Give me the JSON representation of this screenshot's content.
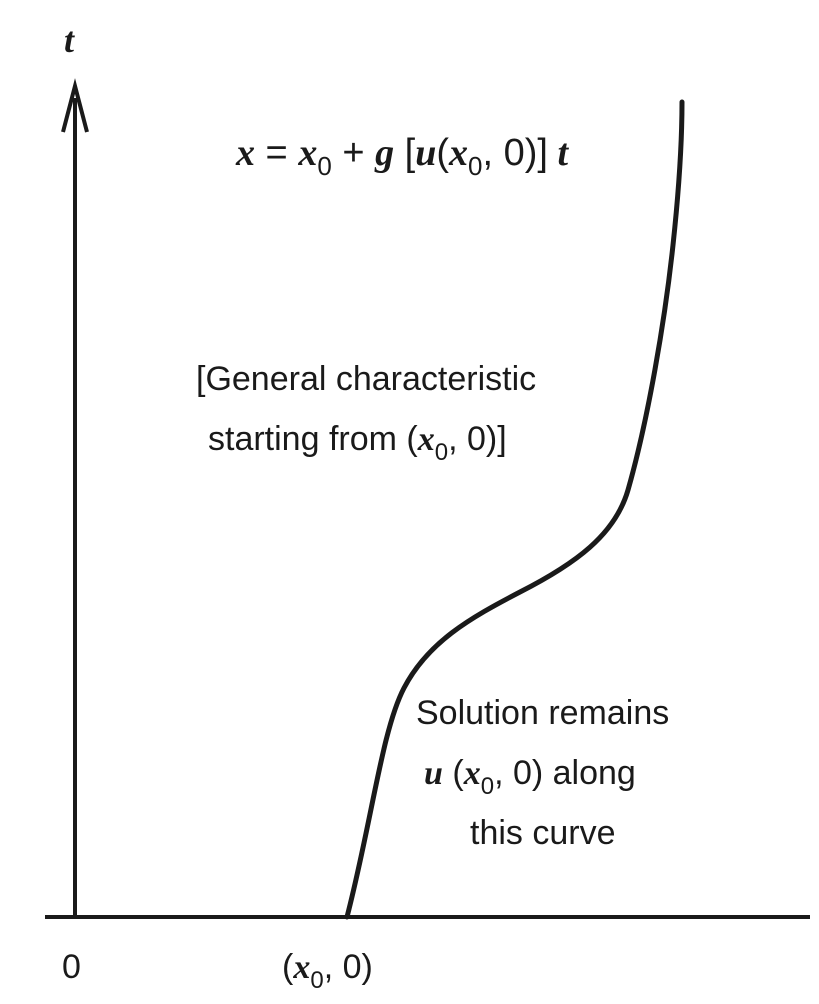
{
  "axes": {
    "t_label": "t",
    "origin_label": "0",
    "start_point_label_open": "(",
    "start_point_label_x": "x",
    "start_point_label_sub": "0",
    "start_point_label_close": ", 0)"
  },
  "equation": {
    "x": "x",
    "eq": " = ",
    "x0": "x",
    "x0_sub": "0",
    "plus": " + ",
    "g": "g",
    "open": " [",
    "u": "u",
    "paren_open": "(",
    "inner_x": "x",
    "inner_sub": "0",
    "inner_rest": ", 0)]",
    "t": " t"
  },
  "characteristic_note": {
    "line1": "[General characteristic",
    "line2_prefix": "starting from (",
    "line2_x": "x",
    "line2_sub": "0",
    "line2_suffix": ", 0)]"
  },
  "solution_note": {
    "line1": "Solution remains",
    "line2_u": "u",
    "line2_open": " (",
    "line2_x": "x",
    "line2_sub": "0",
    "line2_suffix": ", 0) along",
    "line3": "this curve"
  },
  "colors": {
    "ink": "#1a1a1a",
    "background": "#ffffff"
  }
}
